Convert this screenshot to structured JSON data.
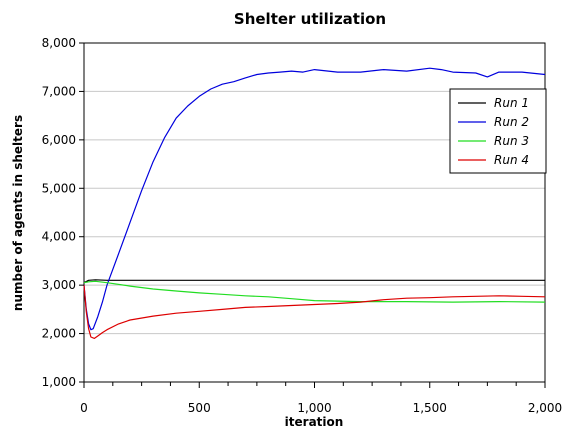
{
  "chart_data": {
    "type": "line",
    "title": "Shelter utilization",
    "xlabel": "iteration",
    "ylabel": "number of agents in shelters",
    "xlim": [
      0,
      2000
    ],
    "ylim": [
      1000,
      8000
    ],
    "x_ticks": [
      0,
      500,
      1000,
      1500,
      2000
    ],
    "x_tick_labels": [
      "0",
      "500",
      "1,000",
      "1,500",
      "2,000"
    ],
    "y_ticks": [
      1000,
      2000,
      3000,
      4000,
      5000,
      6000,
      7000,
      8000
    ],
    "y_tick_labels": [
      "1,000",
      "2,000",
      "3,000",
      "4,000",
      "5,000",
      "6,000",
      "7,000",
      "8,000"
    ],
    "grid": "horizontal",
    "legend_position": "top-right",
    "series": [
      {
        "name": "Run 1",
        "color": "#000000",
        "x": [
          0,
          20,
          50,
          100,
          200,
          400,
          600,
          800,
          1000,
          1200,
          1400,
          1600,
          1800,
          2000
        ],
        "values": [
          3050,
          3100,
          3110,
          3100,
          3100,
          3100,
          3100,
          3100,
          3100,
          3100,
          3100,
          3100,
          3100,
          3100
        ]
      },
      {
        "name": "Run 2",
        "color": "#0000dd",
        "x": [
          0,
          10,
          20,
          30,
          40,
          60,
          80,
          100,
          150,
          200,
          250,
          300,
          350,
          400,
          450,
          500,
          550,
          600,
          650,
          700,
          750,
          800,
          850,
          900,
          950,
          1000,
          1100,
          1200,
          1300,
          1400,
          1500,
          1550,
          1600,
          1700,
          1750,
          1800,
          1900,
          2000
        ],
        "values": [
          3000,
          2500,
          2200,
          2080,
          2100,
          2350,
          2650,
          3000,
          3650,
          4300,
          4950,
          5550,
          6050,
          6450,
          6700,
          6900,
          7050,
          7150,
          7200,
          7280,
          7350,
          7380,
          7400,
          7420,
          7400,
          7450,
          7400,
          7400,
          7450,
          7420,
          7480,
          7450,
          7400,
          7380,
          7300,
          7400,
          7400,
          7350
        ]
      },
      {
        "name": "Run 3",
        "color": "#22dd22",
        "x": [
          0,
          20,
          50,
          100,
          200,
          300,
          400,
          500,
          600,
          700,
          800,
          900,
          1000,
          1100,
          1200,
          1400,
          1600,
          1800,
          2000
        ],
        "values": [
          3050,
          3070,
          3080,
          3050,
          2980,
          2920,
          2880,
          2840,
          2810,
          2780,
          2760,
          2720,
          2680,
          2670,
          2660,
          2660,
          2650,
          2660,
          2650
        ]
      },
      {
        "name": "Run 4",
        "color": "#dd0000",
        "x": [
          0,
          10,
          20,
          30,
          45,
          60,
          80,
          100,
          150,
          200,
          300,
          400,
          500,
          600,
          700,
          800,
          900,
          1000,
          1100,
          1200,
          1300,
          1400,
          1500,
          1600,
          1700,
          1800,
          1900,
          2000
        ],
        "values": [
          3000,
          2450,
          2100,
          1930,
          1900,
          1950,
          2020,
          2080,
          2200,
          2280,
          2360,
          2420,
          2460,
          2500,
          2540,
          2560,
          2580,
          2600,
          2620,
          2650,
          2700,
          2730,
          2740,
          2760,
          2770,
          2780,
          2770,
          2760
        ]
      }
    ]
  }
}
